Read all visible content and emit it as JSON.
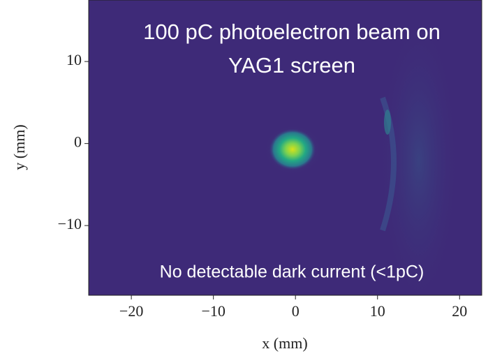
{
  "chart_data": {
    "type": "image",
    "annotations": [
      "100 pC photoelectron beam on",
      "YAG1 screen",
      "No detectable dark current (<1pC)"
    ],
    "xlabel": "x (mm)",
    "ylabel": "y (mm)",
    "xlim": [
      -25.2,
      22.7
    ],
    "ylim": [
      -18.5,
      17.5
    ],
    "xticks": [
      {
        "value": -20,
        "label": "−20"
      },
      {
        "value": -10,
        "label": "−10"
      },
      0,
      10,
      20
    ],
    "yticks": [
      {
        "value": -10,
        "label": "−10"
      },
      0,
      10
    ]
  }
}
